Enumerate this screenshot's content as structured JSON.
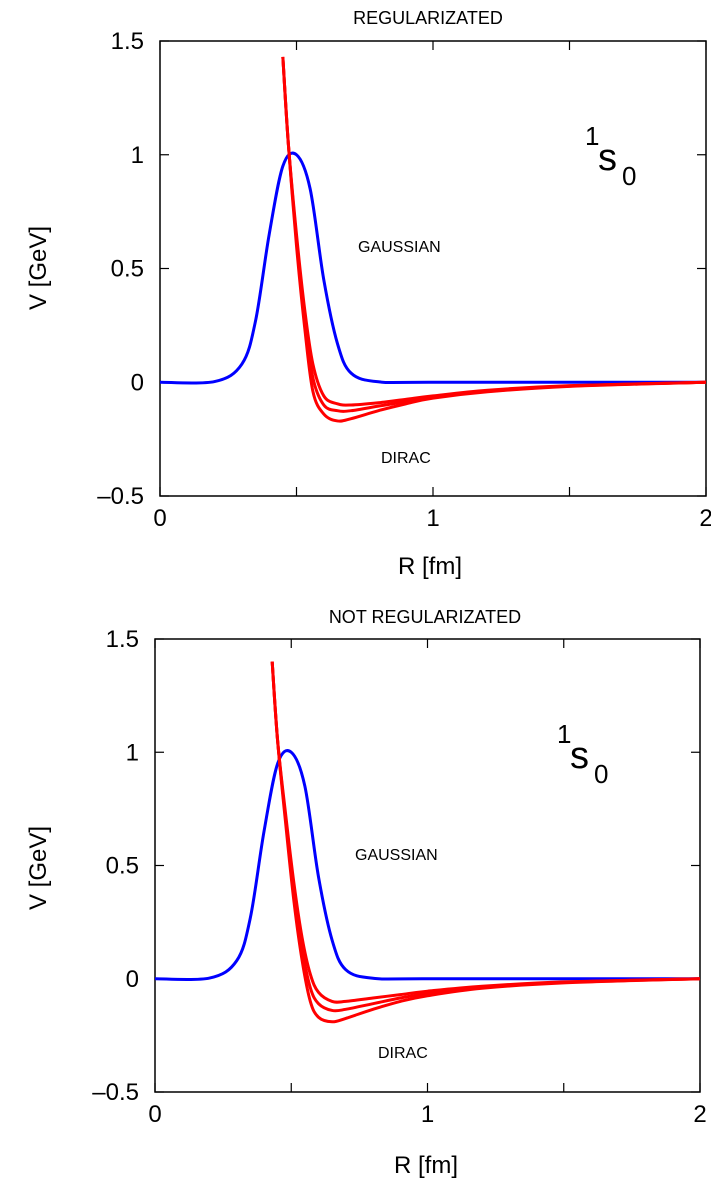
{
  "chart_data": [
    {
      "type": "line",
      "title": "REGULARIZATED",
      "xlabel": "R [fm]",
      "ylabel": "V  [GeV]",
      "xlim": [
        0,
        2
      ],
      "ylim": [
        -0.5,
        1.5
      ],
      "xticks": [
        "0",
        "1",
        "2"
      ],
      "yticks": [
        "–0.5",
        "0",
        "0.5",
        "1",
        "1.5"
      ],
      "xtick_values": [
        0,
        1,
        2
      ],
      "ytick_values": [
        -0.5,
        0,
        0.5,
        1,
        1.5
      ],
      "minor_xticks": [
        0.5,
        1.5
      ],
      "annotations": {
        "gaussian": "GAUSSIAN",
        "dirac": "DIRAC",
        "wave_main": "s",
        "wave_sup": "1",
        "wave_sub": "0"
      },
      "gaussian": {
        "color": "#0000ff",
        "x": [
          0,
          0.2,
          0.3,
          0.35,
          0.4,
          0.45,
          0.5,
          0.55,
          0.6,
          0.65,
          0.7,
          0.8,
          1.0,
          2.0
        ],
        "y": [
          0,
          0.003,
          0.08,
          0.27,
          0.65,
          0.95,
          1.0,
          0.85,
          0.45,
          0.17,
          0.04,
          0.002,
          0,
          0
        ]
      },
      "series": [
        {
          "color": "#ff0000",
          "x": [
            0.45,
            0.47,
            0.5,
            0.53,
            0.56,
            0.6,
            0.65,
            0.7,
            0.8,
            0.9,
            1.0,
            1.2,
            1.5,
            2.0
          ],
          "y": [
            1.43,
            1.05,
            0.65,
            0.32,
            0.08,
            -0.06,
            -0.095,
            -0.1,
            -0.09,
            -0.075,
            -0.06,
            -0.035,
            -0.015,
            0.0
          ]
        },
        {
          "color": "#ff0000",
          "x": [
            0.45,
            0.47,
            0.5,
            0.53,
            0.56,
            0.6,
            0.65,
            0.7,
            0.8,
            0.9,
            1.0,
            1.2,
            1.5,
            2.0
          ],
          "y": [
            1.43,
            1.05,
            0.63,
            0.28,
            0.02,
            -0.1,
            -0.125,
            -0.125,
            -0.105,
            -0.085,
            -0.065,
            -0.04,
            -0.017,
            0.0
          ]
        },
        {
          "color": "#ff0000",
          "x": [
            0.45,
            0.47,
            0.5,
            0.53,
            0.56,
            0.6,
            0.65,
            0.7,
            0.8,
            0.9,
            1.0,
            1.2,
            1.5,
            2.0
          ],
          "y": [
            1.43,
            1.05,
            0.6,
            0.24,
            -0.04,
            -0.14,
            -0.17,
            -0.16,
            -0.125,
            -0.095,
            -0.07,
            -0.042,
            -0.018,
            0.0
          ]
        }
      ]
    },
    {
      "type": "line",
      "title": "NOT REGULARIZATED",
      "xlabel": "R [fm]",
      "ylabel": "V  [GeV]",
      "xlim": [
        0,
        2
      ],
      "ylim": [
        -0.5,
        1.5
      ],
      "xticks": [
        "0",
        "1",
        "2"
      ],
      "yticks": [
        "–0.5",
        "0",
        "0.5",
        "1",
        "1.5"
      ],
      "xtick_values": [
        0,
        1,
        2
      ],
      "ytick_values": [
        -0.5,
        0,
        0.5,
        1,
        1.5
      ],
      "minor_xticks": [
        0.5,
        1.5
      ],
      "annotations": {
        "gaussian": "GAUSSIAN",
        "dirac": "DIRAC",
        "wave_main": "s",
        "wave_sup": "1",
        "wave_sub": "0"
      },
      "gaussian": {
        "color": "#0000ff",
        "x": [
          0,
          0.2,
          0.3,
          0.35,
          0.4,
          0.45,
          0.5,
          0.55,
          0.6,
          0.65,
          0.7,
          0.8,
          1.0,
          2.0
        ],
        "y": [
          0,
          0.003,
          0.08,
          0.27,
          0.65,
          0.95,
          1.0,
          0.85,
          0.45,
          0.17,
          0.04,
          0.002,
          0,
          0
        ]
      },
      "series": [
        {
          "color": "#ff0000",
          "x": [
            0.43,
            0.45,
            0.48,
            0.51,
            0.54,
            0.57,
            0.6,
            0.65,
            0.7,
            0.8,
            0.9,
            1.0,
            1.2,
            1.5,
            2.0
          ],
          "y": [
            1.4,
            1.05,
            0.72,
            0.42,
            0.18,
            0.02,
            -0.06,
            -0.1,
            -0.1,
            -0.085,
            -0.07,
            -0.055,
            -0.033,
            -0.014,
            0.0
          ]
        },
        {
          "color": "#ff0000",
          "x": [
            0.43,
            0.45,
            0.48,
            0.51,
            0.54,
            0.57,
            0.6,
            0.65,
            0.7,
            0.8,
            0.9,
            1.0,
            1.2,
            1.5,
            2.0
          ],
          "y": [
            1.4,
            1.05,
            0.7,
            0.38,
            0.13,
            -0.04,
            -0.11,
            -0.14,
            -0.135,
            -0.11,
            -0.085,
            -0.065,
            -0.038,
            -0.016,
            0.0
          ]
        },
        {
          "color": "#ff0000",
          "x": [
            0.43,
            0.45,
            0.48,
            0.51,
            0.54,
            0.57,
            0.6,
            0.65,
            0.7,
            0.8,
            0.9,
            1.0,
            1.2,
            1.5,
            2.0
          ],
          "y": [
            1.4,
            1.05,
            0.68,
            0.34,
            0.08,
            -0.1,
            -0.17,
            -0.19,
            -0.175,
            -0.135,
            -0.1,
            -0.075,
            -0.042,
            -0.018,
            0.0
          ]
        }
      ]
    }
  ]
}
